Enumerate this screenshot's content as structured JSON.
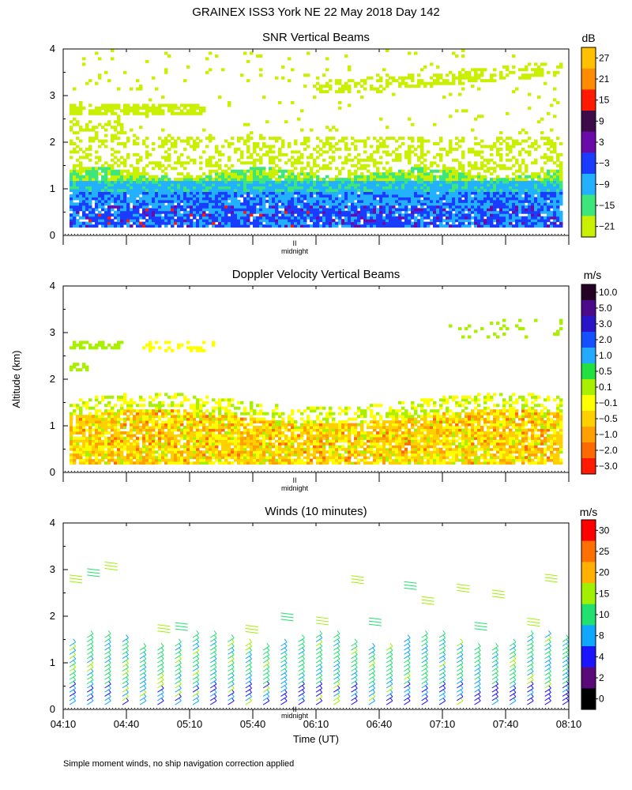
{
  "figure": {
    "title": "GRAINEX ISS3 York NE  22 May 2018 Day 142",
    "ylabel": "Altitude (km)",
    "xlabel": "Time (UT)",
    "footnote": "Simple moment winds, no ship navigation correction applied",
    "midnight_label": "midnight",
    "midnight_mark": "II"
  },
  "chart_data": [
    {
      "type": "heatmap",
      "title": "SNR Vertical Beams",
      "unit": "dB",
      "ylim": [
        0,
        4
      ],
      "y_ticks": [
        "0",
        "1",
        "2",
        "3",
        "4"
      ],
      "colorbar": {
        "labels": [
          "27",
          "21",
          "15",
          "9",
          "3",
          "−3",
          "−9",
          "−15",
          "−21"
        ],
        "colors": [
          "#ffc000",
          "#ff8c00",
          "#ff1a00",
          "#3d0a4a",
          "#6a0aa8",
          "#1a3cff",
          "#22b0ff",
          "#3ce67a",
          "#c8f000"
        ]
      }
    },
    {
      "type": "heatmap",
      "title": "Doppler Velocity Vertical Beams",
      "unit": "m/s",
      "ylim": [
        0,
        4
      ],
      "y_ticks": [
        "0",
        "1",
        "2",
        "3",
        "4"
      ],
      "colorbar": {
        "labels": [
          "10.0",
          "5.0",
          "3.0",
          "2.0",
          "1.0",
          "0.5",
          "0.1",
          "−0.1",
          "−0.5",
          "−1.0",
          "−2.0",
          "−3.0"
        ],
        "colors": [
          "#240024",
          "#4a0a8a",
          "#2a14c8",
          "#1450ff",
          "#22aaff",
          "#22e040",
          "#a8f000",
          "#ffff00",
          "#ffd000",
          "#ffa000",
          "#ff6a00",
          "#ff1a00"
        ]
      }
    },
    {
      "type": "scatter",
      "title": "Winds (10 minutes)",
      "unit": "m/s",
      "ylim": [
        0,
        4
      ],
      "y_ticks": [
        "0",
        "1",
        "2",
        "3",
        "4"
      ],
      "x_ticks": [
        "04:10",
        "04:40",
        "05:10",
        "05:40",
        "06:10",
        "06:40",
        "07:10",
        "07:40",
        "08:10"
      ],
      "colorbar": {
        "labels": [
          "30",
          "25",
          "20",
          "15",
          "10",
          "8",
          "4",
          "2",
          "0"
        ],
        "colors": [
          "#ff0000",
          "#ff7000",
          "#ffb000",
          "#a0f000",
          "#20e070",
          "#10a8ff",
          "#1a14ff",
          "#5a0a78",
          "#000000"
        ]
      }
    }
  ]
}
